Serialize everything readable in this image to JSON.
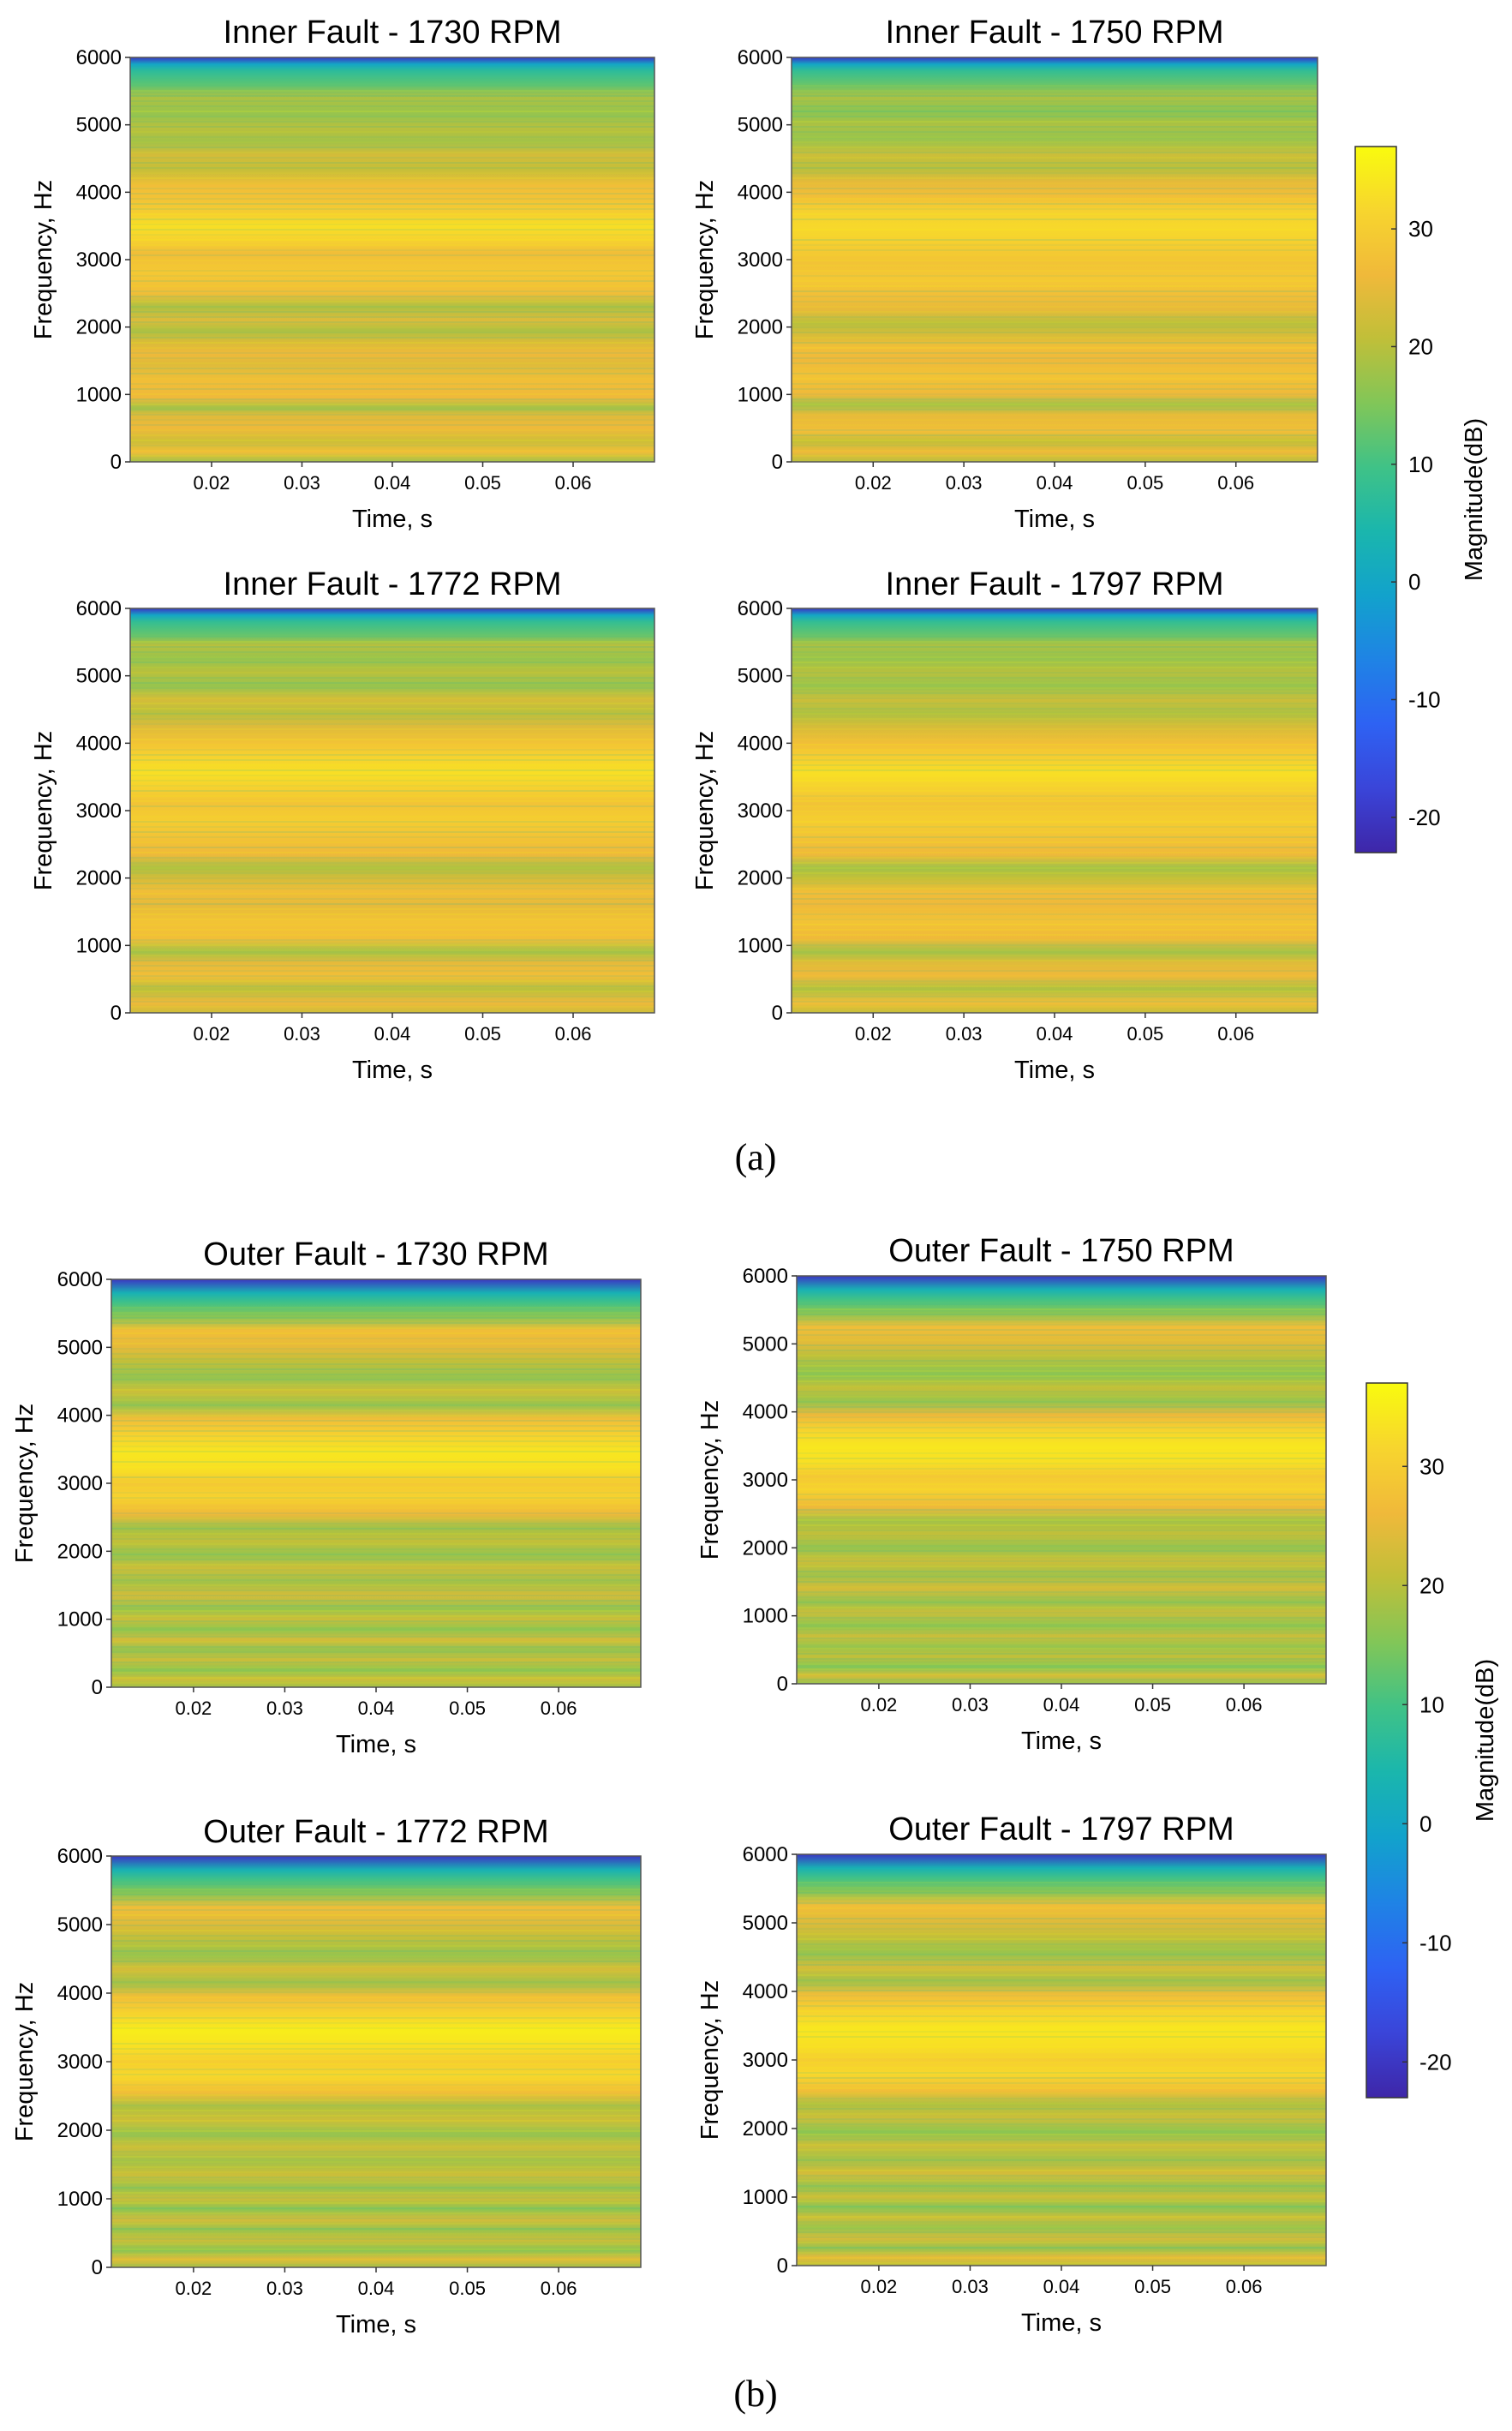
{
  "figure": {
    "panel_a_label": "(a)",
    "panel_b_label": "(b)"
  },
  "colors": {
    "map": [
      "#3e26a8",
      "#3a45d9",
      "#2e62f3",
      "#1f83e5",
      "#12a2cc",
      "#1ab6ad",
      "#3fc287",
      "#81c658",
      "#c0bf39",
      "#f0b93a",
      "#f7d52e",
      "#f9fb0e"
    ]
  },
  "chart_data": [
    {
      "type": "heatmap",
      "group": "a",
      "title": "Inner Fault - 1730 RPM",
      "xlabel": "Time, s",
      "ylabel": "Frequency, Hz",
      "xticks": [
        0.02,
        0.03,
        0.04,
        0.05,
        0.06
      ],
      "xlim": [
        0.011,
        0.069
      ],
      "yticks": [
        0,
        1000,
        2000,
        3000,
        4000,
        5000,
        6000
      ],
      "ylim": [
        0,
        6000
      ],
      "profile": [
        [
          0,
          18
        ],
        [
          150,
          27
        ],
        [
          300,
          22
        ],
        [
          500,
          26
        ],
        [
          700,
          24
        ],
        [
          800,
          18
        ],
        [
          950,
          26
        ],
        [
          1200,
          27
        ],
        [
          1450,
          24
        ],
        [
          1600,
          26
        ],
        [
          1800,
          23
        ],
        [
          1950,
          19
        ],
        [
          2100,
          24
        ],
        [
          2300,
          19
        ],
        [
          2500,
          27
        ],
        [
          2800,
          29
        ],
        [
          3100,
          27
        ],
        [
          3300,
          31
        ],
        [
          3500,
          33
        ],
        [
          3700,
          30
        ],
        [
          3900,
          28
        ],
        [
          4100,
          27
        ],
        [
          4350,
          21
        ],
        [
          4550,
          23
        ],
        [
          4750,
          18
        ],
        [
          4950,
          20
        ],
        [
          5150,
          17
        ],
        [
          5400,
          19
        ],
        [
          5600,
          12
        ],
        [
          5800,
          7
        ],
        [
          5900,
          0
        ],
        [
          6000,
          -20
        ]
      ]
    },
    {
      "type": "heatmap",
      "group": "a",
      "title": "Inner Fault - 1750 RPM",
      "xlabel": "Time, s",
      "ylabel": "Frequency, Hz",
      "xticks": [
        0.02,
        0.03,
        0.04,
        0.05,
        0.06
      ],
      "xlim": [
        0.011,
        0.069
      ],
      "yticks": [
        0,
        1000,
        2000,
        3000,
        4000,
        5000,
        6000
      ],
      "ylim": [
        0,
        6000
      ],
      "profile": [
        [
          0,
          20
        ],
        [
          150,
          26
        ],
        [
          300,
          21
        ],
        [
          450,
          27
        ],
        [
          700,
          25
        ],
        [
          850,
          18
        ],
        [
          1000,
          26
        ],
        [
          1250,
          28
        ],
        [
          1500,
          26
        ],
        [
          1700,
          27
        ],
        [
          1900,
          23
        ],
        [
          2050,
          20
        ],
        [
          2250,
          25
        ],
        [
          2450,
          27
        ],
        [
          2700,
          29
        ],
        [
          2950,
          28
        ],
        [
          3200,
          30
        ],
        [
          3450,
          32
        ],
        [
          3700,
          31
        ],
        [
          3950,
          27
        ],
        [
          4150,
          25
        ],
        [
          4350,
          20
        ],
        [
          4550,
          22
        ],
        [
          4800,
          17
        ],
        [
          5000,
          19
        ],
        [
          5200,
          16
        ],
        [
          5400,
          19
        ],
        [
          5600,
          13
        ],
        [
          5800,
          8
        ],
        [
          5900,
          0
        ],
        [
          6000,
          -20
        ]
      ]
    },
    {
      "type": "heatmap",
      "group": "a",
      "title": "Inner Fault - 1772 RPM",
      "xlabel": "Time, s",
      "ylabel": "Frequency, Hz",
      "xticks": [
        0.02,
        0.03,
        0.04,
        0.05,
        0.06
      ],
      "xlim": [
        0.011,
        0.069
      ],
      "yticks": [
        0,
        1000,
        2000,
        3000,
        4000,
        5000,
        6000
      ],
      "ylim": [
        0,
        6000
      ],
      "profile": [
        [
          0,
          22
        ],
        [
          150,
          26
        ],
        [
          350,
          20
        ],
        [
          550,
          27
        ],
        [
          750,
          25
        ],
        [
          900,
          18
        ],
        [
          1100,
          27
        ],
        [
          1350,
          28
        ],
        [
          1600,
          25
        ],
        [
          1800,
          27
        ],
        [
          2000,
          23
        ],
        [
          2150,
          19
        ],
        [
          2350,
          26
        ],
        [
          2600,
          28
        ],
        [
          2850,
          30
        ],
        [
          3100,
          28
        ],
        [
          3350,
          31
        ],
        [
          3550,
          33
        ],
        [
          3800,
          31
        ],
        [
          4000,
          28
        ],
        [
          4250,
          24
        ],
        [
          4450,
          20
        ],
        [
          4650,
          23
        ],
        [
          4850,
          17
        ],
        [
          5050,
          20
        ],
        [
          5250,
          17
        ],
        [
          5450,
          20
        ],
        [
          5600,
          13
        ],
        [
          5800,
          8
        ],
        [
          5900,
          0
        ],
        [
          6000,
          -20
        ]
      ]
    },
    {
      "type": "heatmap",
      "group": "a",
      "title": "Inner Fault - 1797 RPM",
      "xlabel": "Time, s",
      "ylabel": "Frequency, Hz",
      "xticks": [
        0.02,
        0.03,
        0.04,
        0.05,
        0.06
      ],
      "xlim": [
        0.011,
        0.069
      ],
      "yticks": [
        0,
        1000,
        2000,
        3000,
        4000,
        5000,
        6000
      ],
      "ylim": [
        0,
        6000
      ],
      "profile": [
        [
          0,
          21
        ],
        [
          150,
          27
        ],
        [
          350,
          19
        ],
        [
          550,
          26
        ],
        [
          750,
          24
        ],
        [
          900,
          18
        ],
        [
          1100,
          26
        ],
        [
          1350,
          28
        ],
        [
          1600,
          26
        ],
        [
          1800,
          27
        ],
        [
          2000,
          21
        ],
        [
          2150,
          18
        ],
        [
          2350,
          26
        ],
        [
          2600,
          28
        ],
        [
          2850,
          30
        ],
        [
          3100,
          28
        ],
        [
          3350,
          31
        ],
        [
          3550,
          33
        ],
        [
          3800,
          30
        ],
        [
          4000,
          27
        ],
        [
          4250,
          23
        ],
        [
          4450,
          19
        ],
        [
          4650,
          22
        ],
        [
          4850,
          17
        ],
        [
          5050,
          20
        ],
        [
          5250,
          17
        ],
        [
          5450,
          19
        ],
        [
          5600,
          13
        ],
        [
          5800,
          8
        ],
        [
          5900,
          0
        ],
        [
          6000,
          -20
        ]
      ]
    },
    {
      "type": "heatmap",
      "group": "b",
      "title": "Outer  Fault - 1730 RPM",
      "xlabel": "Time, s",
      "ylabel": "Frequency, Hz",
      "xticks": [
        0.02,
        0.03,
        0.04,
        0.05,
        0.06
      ],
      "xlim": [
        0.011,
        0.069
      ],
      "yticks": [
        0,
        1000,
        2000,
        3000,
        4000,
        5000,
        6000
      ],
      "ylim": [
        0,
        6000
      ],
      "profile": [
        [
          0,
          18
        ],
        [
          120,
          22
        ],
        [
          250,
          16
        ],
        [
          400,
          22
        ],
        [
          550,
          17
        ],
        [
          700,
          23
        ],
        [
          850,
          16
        ],
        [
          1000,
          22
        ],
        [
          1150,
          17
        ],
        [
          1350,
          23
        ],
        [
          1550,
          18
        ],
        [
          1750,
          22
        ],
        [
          1950,
          17
        ],
        [
          2150,
          21
        ],
        [
          2350,
          18
        ],
        [
          2550,
          26
        ],
        [
          2800,
          31
        ],
        [
          3000,
          29
        ],
        [
          3200,
          33
        ],
        [
          3450,
          34
        ],
        [
          3700,
          31
        ],
        [
          3950,
          27
        ],
        [
          4150,
          17
        ],
        [
          4350,
          22
        ],
        [
          4550,
          17
        ],
        [
          4800,
          21
        ],
        [
          5000,
          25
        ],
        [
          5250,
          27
        ],
        [
          5450,
          16
        ],
        [
          5650,
          10
        ],
        [
          5800,
          3
        ],
        [
          6000,
          -20
        ]
      ]
    },
    {
      "type": "heatmap",
      "group": "b",
      "title": "Outer  Fault - 1750 RPM",
      "xlabel": "Time, s",
      "ylabel": "Frequency, Hz",
      "xticks": [
        0.02,
        0.03,
        0.04,
        0.05,
        0.06
      ],
      "xlim": [
        0.011,
        0.069
      ],
      "yticks": [
        0,
        1000,
        2000,
        3000,
        4000,
        5000,
        6000
      ],
      "ylim": [
        0,
        6000
      ],
      "profile": [
        [
          0,
          17
        ],
        [
          120,
          23
        ],
        [
          250,
          15
        ],
        [
          400,
          21
        ],
        [
          550,
          17
        ],
        [
          700,
          22
        ],
        [
          850,
          16
        ],
        [
          1050,
          22
        ],
        [
          1200,
          17
        ],
        [
          1400,
          23
        ],
        [
          1600,
          18
        ],
        [
          1800,
          22
        ],
        [
          2000,
          17
        ],
        [
          2200,
          21
        ],
        [
          2400,
          18
        ],
        [
          2600,
          26
        ],
        [
          2850,
          31
        ],
        [
          3050,
          29
        ],
        [
          3250,
          33
        ],
        [
          3500,
          34
        ],
        [
          3750,
          31
        ],
        [
          3950,
          26
        ],
        [
          4150,
          17
        ],
        [
          4350,
          21
        ],
        [
          4550,
          16
        ],
        [
          4800,
          20
        ],
        [
          5000,
          24
        ],
        [
          5250,
          27
        ],
        [
          5450,
          16
        ],
        [
          5650,
          10
        ],
        [
          5800,
          3
        ],
        [
          6000,
          -20
        ]
      ]
    },
    {
      "type": "heatmap",
      "group": "b",
      "title": "Outer Fault - 1772 RPM",
      "xlabel": "Time, s",
      "ylabel": "Frequency, Hz",
      "xticks": [
        0.02,
        0.03,
        0.04,
        0.05,
        0.06
      ],
      "xlim": [
        0.011,
        0.069
      ],
      "yticks": [
        0,
        1000,
        2000,
        3000,
        4000,
        5000,
        6000
      ],
      "ylim": [
        0,
        6000
      ],
      "profile": [
        [
          0,
          19
        ],
        [
          120,
          24
        ],
        [
          250,
          16
        ],
        [
          400,
          22
        ],
        [
          550,
          17
        ],
        [
          700,
          23
        ],
        [
          850,
          16
        ],
        [
          1000,
          22
        ],
        [
          1150,
          17
        ],
        [
          1350,
          22
        ],
        [
          1550,
          18
        ],
        [
          1750,
          22
        ],
        [
          1950,
          17
        ],
        [
          2150,
          22
        ],
        [
          2350,
          19
        ],
        [
          2550,
          27
        ],
        [
          2800,
          32
        ],
        [
          3000,
          30
        ],
        [
          3200,
          33
        ],
        [
          3450,
          35
        ],
        [
          3700,
          31
        ],
        [
          3950,
          27
        ],
        [
          4150,
          18
        ],
        [
          4350,
          23
        ],
        [
          4550,
          17
        ],
        [
          4800,
          21
        ],
        [
          5000,
          24
        ],
        [
          5250,
          27
        ],
        [
          5450,
          16
        ],
        [
          5650,
          10
        ],
        [
          5800,
          3
        ],
        [
          6000,
          -20
        ]
      ]
    },
    {
      "type": "heatmap",
      "group": "b",
      "title": "Outer  Fault - 1797 RPM",
      "xlabel": "Time, s",
      "ylabel": "Frequency, Hz",
      "xticks": [
        0.02,
        0.03,
        0.04,
        0.05,
        0.06
      ],
      "xlim": [
        0.011,
        0.069
      ],
      "yticks": [
        0,
        1000,
        2000,
        3000,
        4000,
        5000,
        6000
      ],
      "ylim": [
        0,
        6000
      ],
      "profile": [
        [
          0,
          20
        ],
        [
          120,
          25
        ],
        [
          250,
          17
        ],
        [
          400,
          23
        ],
        [
          550,
          17
        ],
        [
          700,
          22
        ],
        [
          850,
          16
        ],
        [
          1000,
          22
        ],
        [
          1150,
          17
        ],
        [
          1350,
          23
        ],
        [
          1550,
          18
        ],
        [
          1750,
          22
        ],
        [
          1950,
          16
        ],
        [
          2150,
          22
        ],
        [
          2350,
          19
        ],
        [
          2550,
          27
        ],
        [
          2800,
          32
        ],
        [
          3000,
          30
        ],
        [
          3200,
          33
        ],
        [
          3450,
          34
        ],
        [
          3700,
          31
        ],
        [
          3950,
          27
        ],
        [
          4150,
          18
        ],
        [
          4350,
          23
        ],
        [
          4550,
          17
        ],
        [
          4800,
          21
        ],
        [
          5000,
          24
        ],
        [
          5250,
          27
        ],
        [
          5450,
          16
        ],
        [
          5650,
          10
        ],
        [
          5800,
          3
        ],
        [
          6000,
          -20
        ]
      ]
    }
  ],
  "colorbars": [
    {
      "group": "a",
      "label": "Magnitude(dB)",
      "ticks": [
        30,
        20,
        10,
        0,
        -10,
        -20
      ],
      "range": [
        -23,
        37
      ]
    },
    {
      "group": "b",
      "label": "Magnitude(dB)",
      "ticks": [
        30,
        20,
        10,
        0,
        -10,
        -20
      ],
      "range": [
        -23,
        37
      ]
    }
  ]
}
